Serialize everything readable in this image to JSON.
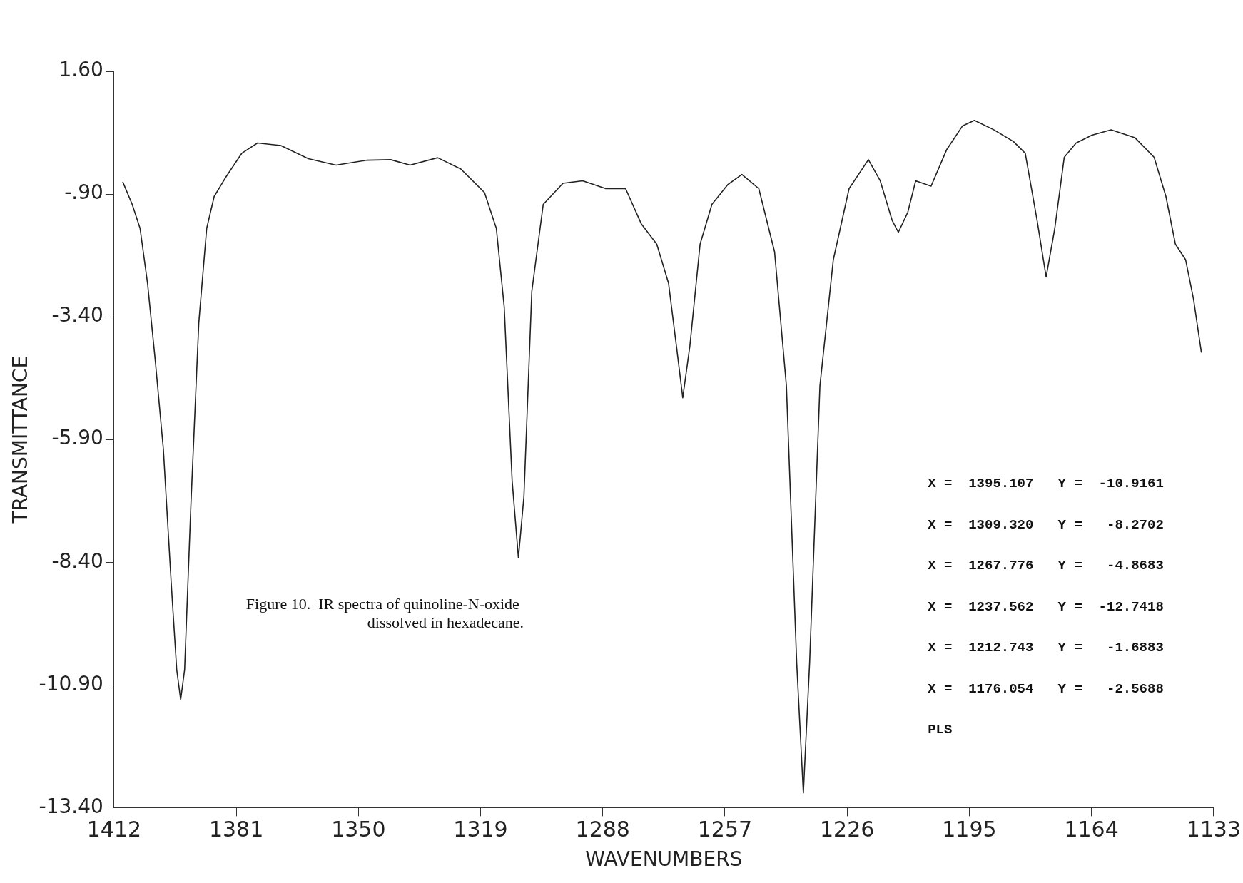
{
  "chart_data": {
    "type": "line",
    "xlabel": "WAVENUMBERS",
    "ylabel": "TRANSMITTANCE",
    "color": "#222222",
    "x": [
      1409.8,
      1407.4,
      1405.4,
      1403.5,
      1401.5,
      1399.5,
      1397.5,
      1396.1,
      1395.1,
      1394.1,
      1392.5,
      1390.5,
      1388.5,
      1386.6,
      1383.6,
      1379.6,
      1375.6,
      1369.7,
      1362.7,
      1355.7,
      1347.8,
      1341.8,
      1336.9,
      1329.9,
      1324.0,
      1318.0,
      1315.0,
      1313.0,
      1311.0,
      1309.4,
      1308.0,
      1306.0,
      1303.1,
      1298.1,
      1293.1,
      1287.2,
      1282.2,
      1278.2,
      1274.3,
      1271.3,
      1269.3,
      1267.7,
      1265.9,
      1263.3,
      1260.3,
      1256.3,
      1252.7,
      1248.4,
      1244.4,
      1241.4,
      1238.8,
      1237.1,
      1235.5,
      1232.9,
      1229.5,
      1225.5,
      1220.6,
      1217.6,
      1214.6,
      1213.0,
      1210.6,
      1208.6,
      1204.7,
      1200.7,
      1196.7,
      1193.7,
      1188.8,
      1183.8,
      1180.8,
      1177.8,
      1175.5,
      1173.3,
      1170.9,
      1167.9,
      1163.9,
      1159.0,
      1153.0,
      1148.1,
      1145.1,
      1142.7,
      1140.1,
      1138.1,
      1136.1
    ],
    "values": [
      -0.65,
      -1.11,
      -1.6,
      -2.72,
      -4.33,
      -6.09,
      -8.82,
      -10.59,
      -11.2,
      -10.59,
      -7.22,
      -3.52,
      -1.6,
      -0.95,
      -0.55,
      -0.07,
      0.14,
      0.09,
      -0.18,
      -0.31,
      -0.21,
      -0.2,
      -0.31,
      -0.16,
      -0.39,
      -0.87,
      -1.6,
      -3.2,
      -6.73,
      -8.31,
      -7.06,
      -2.88,
      -1.11,
      -0.68,
      -0.63,
      -0.79,
      -0.79,
      -1.51,
      -1.92,
      -2.72,
      -4.0,
      -5.05,
      -4.0,
      -1.92,
      -1.11,
      -0.71,
      -0.5,
      -0.79,
      -2.08,
      -4.81,
      -10.43,
      -13.1,
      -10.43,
      -4.81,
      -2.24,
      -0.79,
      -0.2,
      -0.63,
      -1.43,
      -1.68,
      -1.27,
      -0.63,
      -0.74,
      0.01,
      0.49,
      0.6,
      0.41,
      0.17,
      -0.07,
      -1.43,
      -2.59,
      -1.6,
      -0.15,
      0.14,
      0.3,
      0.41,
      0.25,
      -0.15,
      -0.95,
      -1.92,
      -2.24,
      -3.04,
      -4.13
    ],
    "xlim": [
      1412,
      1133
    ],
    "xticks": [
      1412,
      1381,
      1350,
      1319,
      1288,
      1257,
      1226,
      1195,
      1164,
      1133
    ],
    "ylim": [
      -13.4,
      1.6
    ],
    "yticks": [
      {
        "value": 1.6,
        "label": "1.60"
      },
      {
        "value": -0.9,
        "label": "-.90"
      },
      {
        "value": -3.4,
        "label": "-3.40"
      },
      {
        "value": -5.9,
        "label": "-5.90"
      },
      {
        "value": -8.4,
        "label": "-8.40"
      },
      {
        "value": -10.9,
        "label": "-10.90"
      },
      {
        "value": -13.4,
        "label": "-13.40"
      }
    ],
    "grid": false,
    "legend": false,
    "marker": "none",
    "line_style": "solid",
    "annotations": [
      "Figure 10.  IR spectra of quinoline-N-oxide dissolved in hexadecane.",
      "X =  1395.107   Y =  -10.9161",
      "X =  1309.320   Y =   -8.2702",
      "X =  1267.776   Y =   -4.8683",
      "X =  1237.562   Y =  -12.7418",
      "X =  1212.743   Y =   -1.6883",
      "X =  1176.054   Y =   -2.5688",
      "PLS"
    ]
  }
}
